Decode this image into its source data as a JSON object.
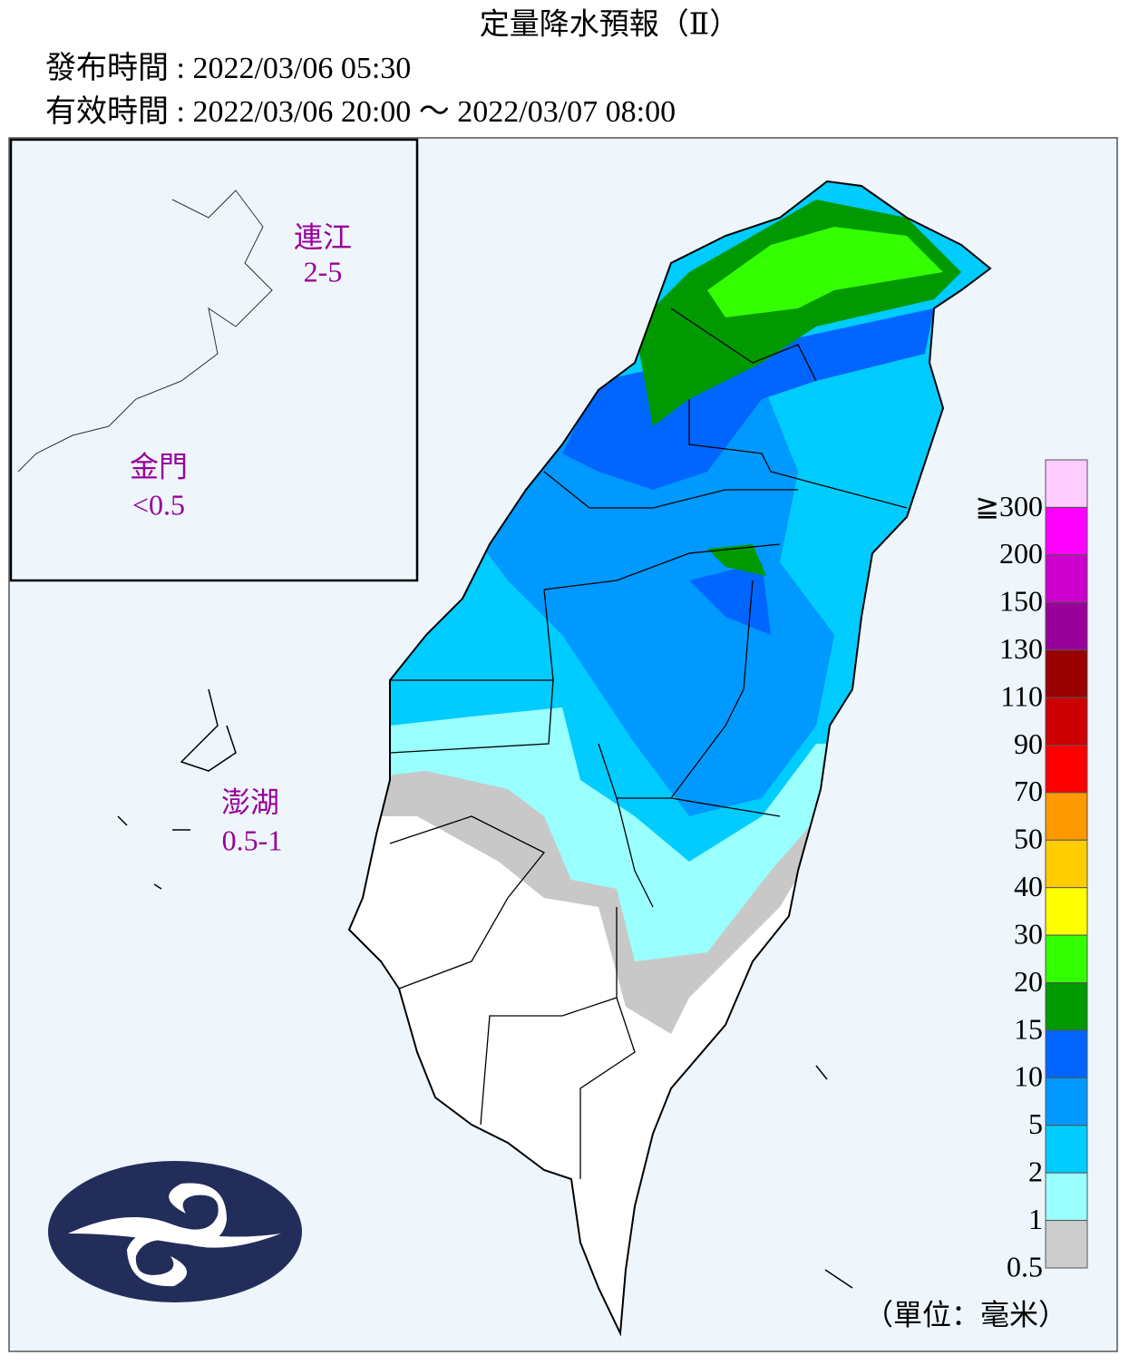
{
  "header": {
    "title": "定量降水預報（Ⅱ）",
    "issued": "發布時間 : 2022/03/06 05:30",
    "valid": "有效時間 : 2022/03/06 20:00 ～ 2022/03/07 08:00"
  },
  "regions": [
    {
      "name": "連江",
      "value": "2-5"
    },
    {
      "name": "金門",
      "value": "<0.5"
    },
    {
      "name": "澎湖",
      "value": "0.5-1"
    }
  ],
  "legend": {
    "levels": [
      {
        "label": "≧300",
        "color": "#ffccff"
      },
      {
        "label": "200",
        "color": "#ff00ff"
      },
      {
        "label": "150",
        "color": "#cc00cc"
      },
      {
        "label": "130",
        "color": "#990099"
      },
      {
        "label": "110",
        "color": "#990000"
      },
      {
        "label": "90",
        "color": "#cc0000"
      },
      {
        "label": "70",
        "color": "#ff0000"
      },
      {
        "label": "50",
        "color": "#ff9900"
      },
      {
        "label": "40",
        "color": "#ffcc00"
      },
      {
        "label": "30",
        "color": "#ffff00"
      },
      {
        "label": "20",
        "color": "#33ff00"
      },
      {
        "label": "15",
        "color": "#009900"
      },
      {
        "label": "10",
        "color": "#0066ff"
      },
      {
        "label": "5",
        "color": "#0099ff"
      },
      {
        "label": "2",
        "color": "#00ccff"
      },
      {
        "label": "1",
        "color": "#99ffff"
      },
      {
        "label": "0.5",
        "color": "#cccccc"
      }
    ],
    "unit": "（單位：毫米）"
  }
}
